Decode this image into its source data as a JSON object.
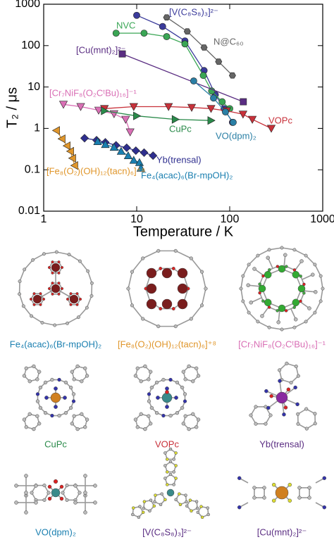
{
  "chart_data": {
    "type": "line",
    "x_label": "Temperature / K",
    "y_label": "T₂ / μs",
    "xscale": "log",
    "yscale": "log",
    "xlim": [
      1,
      1000
    ],
    "ylim": [
      0.01,
      1000
    ],
    "xticks": [
      1,
      10,
      100,
      1000
    ],
    "yticks": [
      0.01,
      0.1,
      1,
      10,
      100,
      1000
    ],
    "series": [
      {
        "name": "[V(C₈S₈)₃]²⁻",
        "color": "#3b3b9b",
        "marker": "circle",
        "x": [
          10,
          19,
          33,
          53,
          70,
          87,
          107
        ],
        "values": [
          540,
          290,
          130,
          25,
          6.5,
          3,
          1.4
        ]
      },
      {
        "name": "NVC",
        "color": "#3aa655",
        "marker": "circle",
        "x": [
          6,
          12,
          21,
          33,
          52,
          64,
          83,
          100
        ],
        "values": [
          200,
          200,
          165,
          110,
          19,
          8,
          4.4,
          3
        ]
      },
      {
        "name": "N@C₆₀",
        "color": "#666666",
        "marker": "hexagon",
        "x": [
          21,
          35,
          53,
          76,
          107
        ],
        "values": [
          480,
          220,
          90,
          41,
          19
        ]
      },
      {
        "name": "[Cu(mnt)₂]²⁻",
        "color": "#5a2d82",
        "marker": "square",
        "x": [
          7,
          140
        ],
        "values": [
          63,
          4.4
        ]
      },
      {
        "name": "[Cr₇NiF₈(O₂CᵗBu)₁₆]⁻¹",
        "color": "#d96fb5",
        "marker": "tri-down",
        "x": [
          1.63,
          2.5,
          3.9,
          5.7,
          7.6,
          8.5
        ],
        "values": [
          3.8,
          3.35,
          2.75,
          2.25,
          1.65,
          0.82
        ]
      },
      {
        "name": "VOPc",
        "color": "#c8313a",
        "marker": "tri-down",
        "x": [
          4.5,
          9.3,
          22,
          39,
          63,
          93,
          139,
          175,
          280
        ],
        "values": [
          3,
          3.35,
          3.35,
          3.2,
          3,
          2.65,
          2.2,
          1.65,
          1
        ]
      },
      {
        "name": "CuPc",
        "color": "#2a8a4a",
        "marker": "tri-right",
        "x": [
          4.5,
          10,
          26,
          63
        ],
        "values": [
          2.65,
          2,
          1.65,
          1.55
        ]
      },
      {
        "name": "VO(dpm)₂",
        "color": "#2a7fa5",
        "marker": "circle",
        "x": [
          41,
          67,
          90,
          109
        ],
        "values": [
          14,
          5.4,
          2.5,
          1.4
        ]
      },
      {
        "name": "Yb(trensal)",
        "color": "#2f2f8f",
        "marker": "diamond",
        "x": [
          2.75,
          3.7,
          4.6,
          6,
          7.8,
          9.8,
          12,
          15
        ],
        "values": [
          0.58,
          0.52,
          0.46,
          0.39,
          0.34,
          0.29,
          0.26,
          0.22
        ]
      },
      {
        "name": "Fe₄(acac)₆(Br-mpOH)₂",
        "color": "#1a7fb0",
        "marker": "tri-up",
        "x": [
          3.8,
          4.6,
          5.7,
          6.8,
          8.1,
          9.3,
          10.7,
          11.1
        ],
        "values": [
          0.48,
          0.41,
          0.35,
          0.28,
          0.22,
          0.17,
          0.15,
          0.11
        ]
      },
      {
        "name": "[Fe₈(O₂)(OH)₁₂(tacn)₆]⁺⁸",
        "color": "#e0962b",
        "marker": "tri-left",
        "x": [
          1.37,
          1.57,
          1.78,
          1.94,
          2.04,
          2.15
        ],
        "values": [
          0.89,
          0.56,
          0.38,
          0.28,
          0.19,
          0.127
        ]
      }
    ]
  },
  "structures": [
    {
      "label": "Fe₄(acac)₆(Br-mpOH)₂",
      "color": "#1a7fb0"
    },
    {
      "label": "[Fe₈(O₂)(OH)₁₂(tacn)₆]⁺⁸",
      "color": "#e0962b"
    },
    {
      "label": "[Cr₇NiF₈(O₂CᵗBu)₁₆]⁻¹",
      "color": "#d96fb5"
    },
    {
      "label": "CuPc",
      "color": "#2a8a4a"
    },
    {
      "label": "VOPc",
      "color": "#c8313a"
    },
    {
      "label": "Yb(trensal)",
      "color": "#5a2d82"
    },
    {
      "label": "VO(dpm)₂",
      "color": "#1a7fb0"
    },
    {
      "label": "[V(C₈S₈)₃]²⁻",
      "color": "#5a2d82"
    },
    {
      "label": "[Cu(mnt)₂]²⁻",
      "color": "#5a2d82"
    }
  ]
}
